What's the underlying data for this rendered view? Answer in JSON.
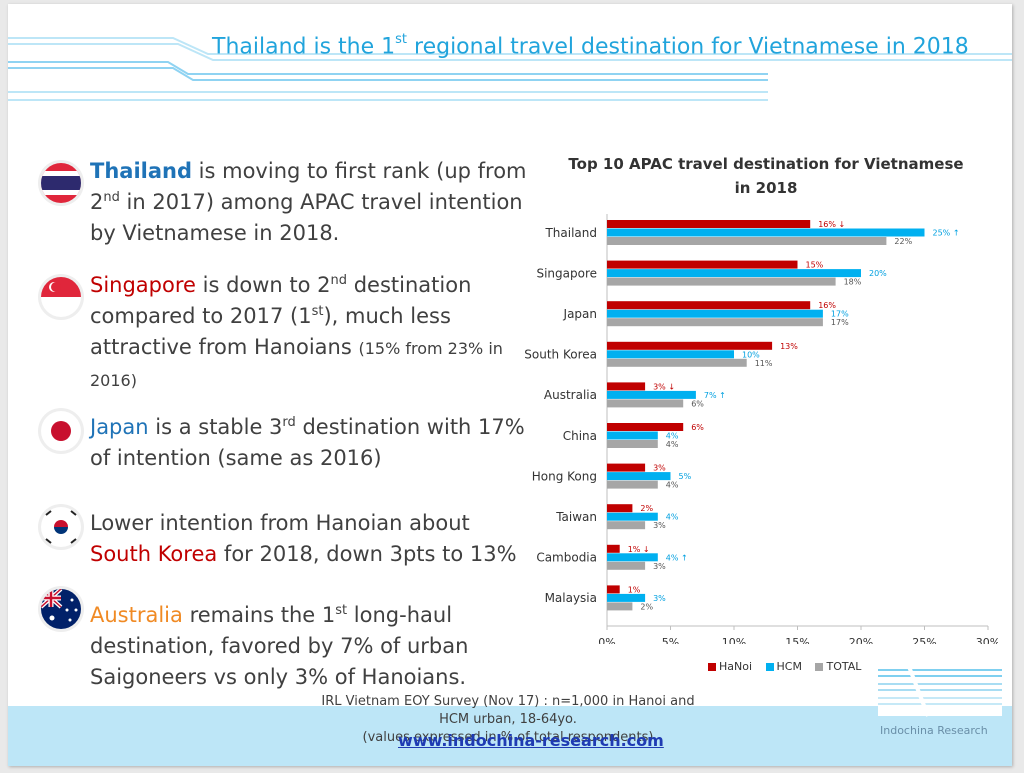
{
  "title": {
    "pre": "Thailand is the 1",
    "sup": "st",
    "post": " regional travel destination for Vietnamese in 2018"
  },
  "bullets": [
    {
      "flag": "thailand-flag-icon",
      "parts": [
        {
          "t": "Thailand",
          "c": "hl-blue"
        },
        {
          "t": " is moving to first rank (up from 2"
        },
        {
          "t": "nd",
          "sup": true
        },
        {
          "t": " in 2017) among APAC travel intention by Vietnamese in 2018."
        }
      ]
    },
    {
      "flag": "singapore-flag-icon",
      "parts": [
        {
          "t": "Singapore",
          "c": "hl-red"
        },
        {
          "t": " is down to 2"
        },
        {
          "t": "nd",
          "sup": true
        },
        {
          "t": " destination compared to 2017 (1"
        },
        {
          "t": "st",
          "sup": true
        },
        {
          "t": "), much less attractive from Hanoians "
        },
        {
          "t": "(15% from 23% in 2016)",
          "small": true
        }
      ]
    },
    {
      "flag": "japan-flag-icon",
      "parts": [
        {
          "t": "Japan",
          "c": "hl-blue2"
        },
        {
          "t": " is a stable 3"
        },
        {
          "t": "rd",
          "sup": true
        },
        {
          "t": " destination with 17% of intention (same as 2016)"
        }
      ]
    },
    {
      "flag": "south-korea-flag-icon",
      "parts": [
        {
          "t": "Lower intention from Hanoian about "
        },
        {
          "t": "South Korea",
          "c": "hl-red"
        },
        {
          "t": " for 2018, down 3pts to 13%"
        }
      ]
    },
    {
      "flag": "australia-flag-icon",
      "parts": [
        {
          "t": "Australia",
          "c": "hl-orange"
        },
        {
          "t": " remains the 1"
        },
        {
          "t": "st",
          "sup": true
        },
        {
          "t": " long-haul destination, favored by 7% of urban Saigoneers vs only 3% of Hanoians."
        }
      ]
    }
  ],
  "chart_data": {
    "type": "bar",
    "orientation": "horizontal",
    "title_line1": "Top 10 APAC travel destination  for Vietnamese",
    "title_line2": "in 2018",
    "categories": [
      "Thailand",
      "Singapore",
      "Japan",
      "South Korea",
      "Australia",
      "China",
      "Hong Kong",
      "Taiwan",
      "Cambodia",
      "Malaysia"
    ],
    "series": [
      {
        "name": "HaNoi",
        "color": "#c00000",
        "values": [
          16,
          15,
          16,
          13,
          3,
          6,
          3,
          2,
          1,
          1
        ],
        "labels": [
          "16% ↓",
          "15%",
          "16%",
          "13%",
          "3% ↓",
          "6%",
          "3%",
          "2%",
          "1% ↓",
          "1%"
        ]
      },
      {
        "name": "HCM",
        "color": "#00b0f0",
        "values": [
          25,
          20,
          17,
          10,
          7,
          4,
          5,
          4,
          4,
          3
        ],
        "labels": [
          "25% ↑",
          "20%",
          "17%",
          "10%",
          "7% ↑",
          "4%",
          "5%",
          "4%",
          "4% ↑",
          "3%"
        ]
      },
      {
        "name": "TOTAL",
        "color": "#a6a6a6",
        "values": [
          22,
          18,
          17,
          11,
          6,
          4,
          4,
          3,
          3,
          2
        ],
        "labels": [
          "22%",
          "18%",
          "17%",
          "11%",
          "6%",
          "4%",
          "4%",
          "3%",
          "3%",
          "2%"
        ]
      }
    ],
    "xlim": [
      0,
      30
    ],
    "xticks": [
      "0%",
      "5%",
      "10%",
      "15%",
      "20%",
      "25%",
      "30%"
    ],
    "legend_position": "bottom"
  },
  "legend": {
    "hanoi": "HaNoi",
    "hcm": "HCM",
    "total": "TOTAL"
  },
  "footer": {
    "source_line1": "IRL Vietnam EOY Survey (Nov 17) : n=1,000 in Hanoi and HCM urban, 18-64yo.",
    "source_line2": "(values expressed in % of total respondents)",
    "url": "www.indochina-research.com",
    "logo_text": "Indochina Research"
  }
}
